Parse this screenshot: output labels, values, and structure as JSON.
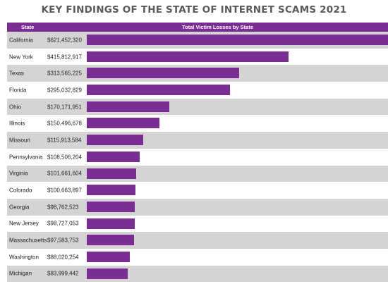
{
  "title": "KEY FINDINGS OF THE STATE OF INTERNET SCAMS 2021",
  "header": {
    "state_label": "State",
    "losses_label": "Total Victim Losses by State"
  },
  "colors": {
    "bar": "#7a2e93",
    "header": "#7a2e93",
    "stripe": "#d4d4d4"
  },
  "chart_data": {
    "type": "bar",
    "orientation": "horizontal",
    "title": "KEY FINDINGS OF THE STATE OF INTERNET SCAMS 2021",
    "xlabel": "Total Victim Losses by State",
    "ylabel": "State",
    "categories": [
      "California",
      "New York",
      "Texas",
      "Florida",
      "Ohio",
      "Illinois",
      "Missouri",
      "Pennsylvania",
      "Virginia",
      "Colorado",
      "Georgia",
      "New Jersey",
      "Massachusetts",
      "Washington",
      "Michigan"
    ],
    "labels": [
      "$621,452,320",
      "$415,812,917",
      "$313,565,225",
      "$295,032,829",
      "$170,171,951",
      "$150,496,678",
      "$115,913,584",
      "$108,506,204",
      "$101,661,604",
      "$100,663,897",
      "$98,762,523",
      "$98,727,053",
      "$97,583,753",
      "$88,020,254",
      "$83,999,442"
    ],
    "values": [
      621452320,
      415812917,
      313565225,
      295032829,
      170171951,
      150496678,
      115913584,
      108506204,
      101661604,
      100663897,
      98762523,
      98727053,
      97583753,
      88020254,
      83999442
    ],
    "grid": false,
    "legend": "none"
  }
}
